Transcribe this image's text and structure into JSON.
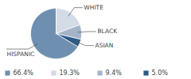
{
  "chart_data": {
    "type": "pie",
    "categories": [
      "HISPANIC",
      "WHITE",
      "BLACK",
      "ASIAN"
    ],
    "values": [
      66.4,
      19.3,
      9.4,
      5.0
    ],
    "value_labels": [
      "66.4%",
      "19.3%",
      "9.4%",
      "5.0%"
    ],
    "colors": [
      "#6f8fb0",
      "#d3dbe6",
      "#a3b4c9",
      "#2d5a85"
    ],
    "legend": "bottom"
  }
}
